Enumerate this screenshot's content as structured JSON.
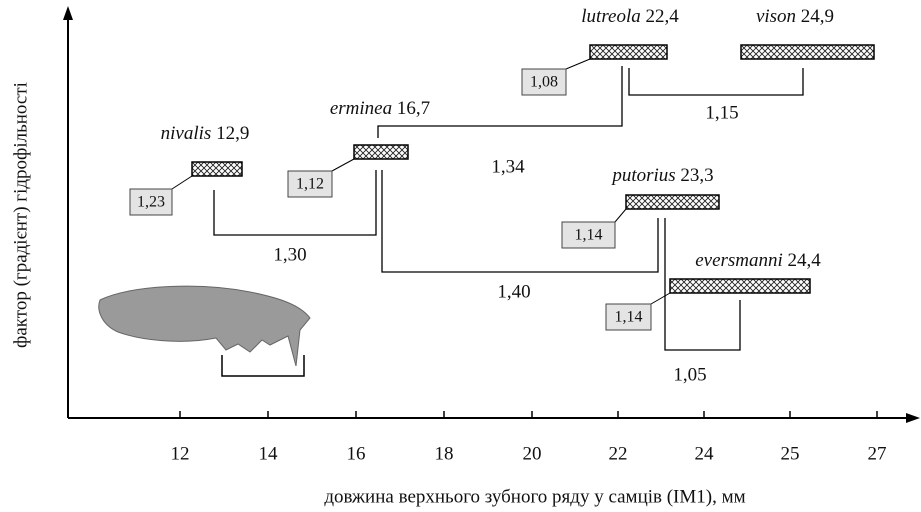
{
  "axis": {
    "x_label": "довжина верхнього зубного ряду у самців (IM1), мм",
    "y_label": "фактор (градієнт) гідрофільності",
    "ticks": [
      "12",
      "14",
      "16",
      "18",
      "20",
      "22",
      "24",
      "25",
      "27"
    ]
  },
  "species": [
    {
      "name": "nivalis",
      "value": "12,9",
      "ratio": "1,23"
    },
    {
      "name": "erminea",
      "value": "16,7",
      "ratio": "1,12"
    },
    {
      "name": "lutreola",
      "value": "22,4",
      "ratio": "1,08"
    },
    {
      "name": "vison",
      "value": "24,9"
    },
    {
      "name": "putorius",
      "value": "23,3",
      "ratio": "1,14"
    },
    {
      "name": "eversmanni",
      "value": "24,4",
      "ratio": "1,14"
    }
  ],
  "links": [
    "1,30",
    "1,34",
    "1,40",
    "1,15",
    "1,05"
  ]
}
